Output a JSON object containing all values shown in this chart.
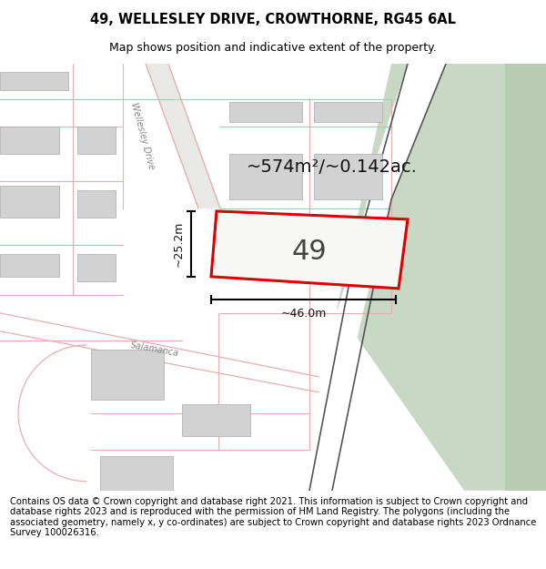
{
  "title": "49, WELLESLEY DRIVE, CROWTHORNE, RG45 6AL",
  "subtitle": "Map shows position and indicative extent of the property.",
  "footer": "Contains OS data © Crown copyright and database right 2021. This information is subject to Crown copyright and database rights 2023 and is reproduced with the permission of HM Land Registry. The polygons (including the associated geometry, namely x, y co-ordinates) are subject to Crown copyright and database rights 2023 Ordnance Survey 100026316.",
  "map_bg": "#f7f7f5",
  "title_fontsize": 10.5,
  "subtitle_fontsize": 9,
  "footer_fontsize": 7.2,
  "area_label": "~574m²/~0.142ac.",
  "number_label": "49",
  "dim_width": "~46.0m",
  "dim_height": "~25.2m",
  "property_color": "#dd0000",
  "road_color": "#e8aeae",
  "building_color": "#d2d2d2",
  "green_color": "#c8d8c4",
  "green_dark_color": "#b8ccb4",
  "white_road": "#ffffff",
  "dark_line": "#555555",
  "label_color": "#888888"
}
